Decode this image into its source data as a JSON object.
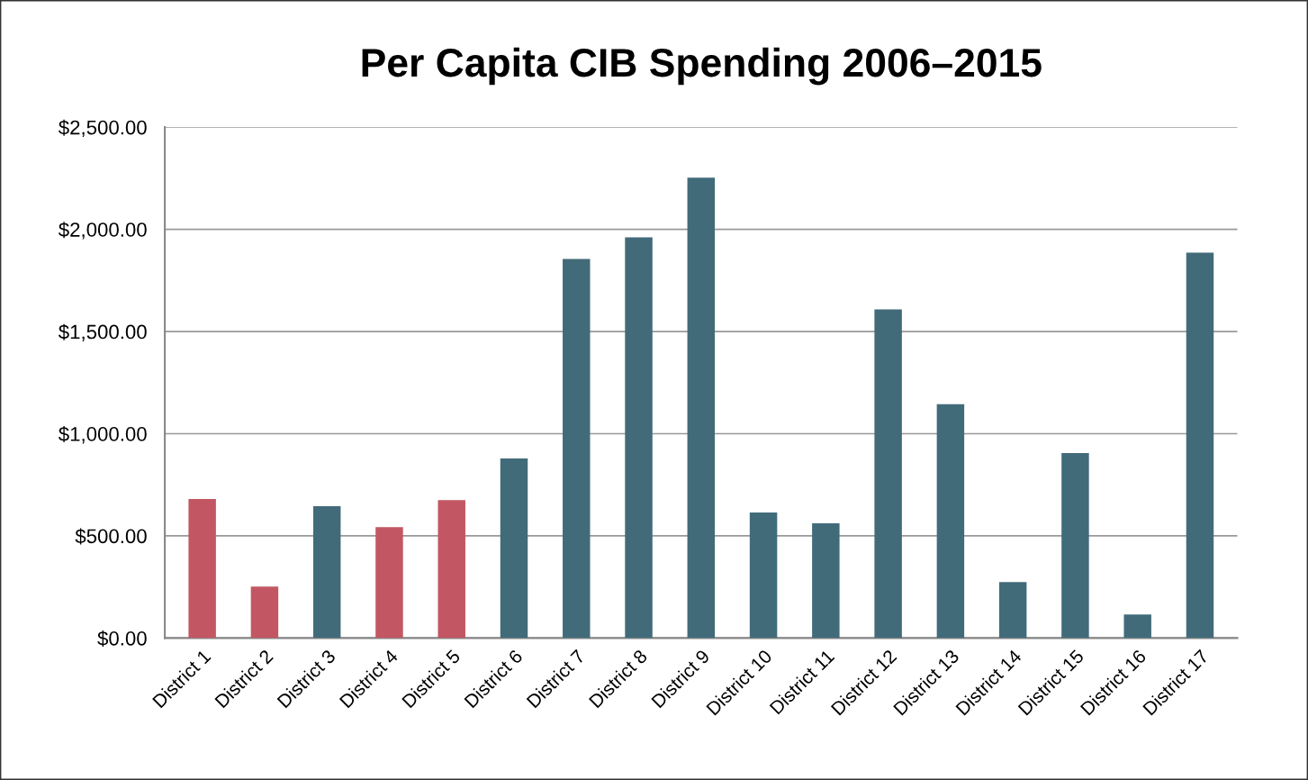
{
  "chart_data": {
    "type": "bar",
    "title": "Per Capita CIB Spending 2006–2015",
    "categories": [
      "District 1",
      "District 2",
      "District 3",
      "District 4",
      "District 5",
      "District 6",
      "District 7",
      "District 8",
      "District 9",
      "District 10",
      "District 11",
      "District 12",
      "District 13",
      "District 14",
      "District 15",
      "District 16",
      "District 17"
    ],
    "values": [
      680,
      252,
      645,
      543,
      675,
      879,
      1855,
      1961,
      2253,
      614,
      561,
      1608,
      1144,
      274,
      905,
      115,
      1886
    ],
    "colors": [
      "#c25763",
      "#c25763",
      "#426b7a",
      "#c25763",
      "#c25763",
      "#426b7a",
      "#426b7a",
      "#426b7a",
      "#426b7a",
      "#426b7a",
      "#426b7a",
      "#426b7a",
      "#426b7a",
      "#426b7a",
      "#426b7a",
      "#426b7a",
      "#426b7a"
    ],
    "ylim": [
      0,
      2500
    ],
    "yticks": [
      {
        "value": 0,
        "label": "$0.00"
      },
      {
        "value": 500,
        "label": "$500.00"
      },
      {
        "value": 1000,
        "label": "$1,000.00"
      },
      {
        "value": 1500,
        "label": "$1,500.00"
      },
      {
        "value": 2000,
        "label": "$2,000.00"
      },
      {
        "value": 2500,
        "label": "$2,500.00"
      }
    ],
    "grid": "y"
  }
}
